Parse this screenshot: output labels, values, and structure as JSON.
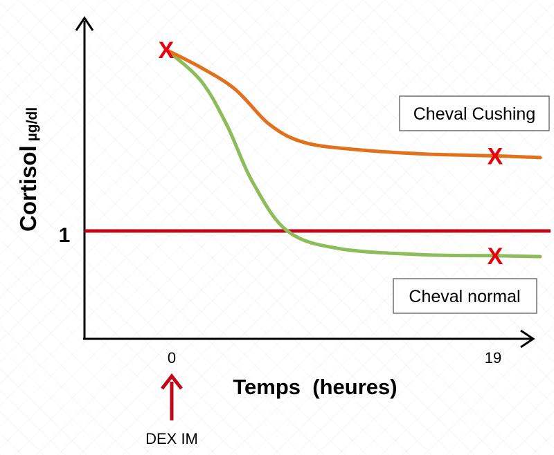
{
  "chart_data": {
    "type": "line",
    "xlabel": "Temps  (heures)",
    "ylabel": "Cortisol",
    "ylabel_unit": "µg/dl",
    "x_ticks": [
      "0",
      "19"
    ],
    "y_ticks": [
      "1"
    ],
    "x_range": [
      0,
      19
    ],
    "grid": false,
    "series": [
      {
        "name": "Cheval Cushing",
        "color": "#e2711d",
        "points": [
          [
            0,
            3.05
          ],
          [
            2,
            2.85
          ],
          [
            4,
            2.6
          ],
          [
            6,
            2.2
          ],
          [
            8,
            2.0
          ],
          [
            11,
            1.92
          ],
          [
            15,
            1.87
          ],
          [
            19,
            1.85
          ],
          [
            21.6,
            1.83
          ]
        ]
      },
      {
        "name": "Cheval normal",
        "color": "#8dbd5a",
        "points": [
          [
            0,
            3.05
          ],
          [
            2,
            2.7
          ],
          [
            3.5,
            2.2
          ],
          [
            5,
            1.55
          ],
          [
            7,
            1.0
          ],
          [
            10,
            0.8
          ],
          [
            15,
            0.73
          ],
          [
            19,
            0.72
          ],
          [
            21.6,
            0.71
          ]
        ]
      }
    ],
    "reference_line": {
      "value": 1,
      "color": "#c0081a"
    },
    "markers": [
      {
        "symbol": "X",
        "x": 0,
        "y": 3.05,
        "color": "#e8000f"
      },
      {
        "symbol": "X",
        "x": 19,
        "y": 1.85,
        "color": "#e8000f"
      },
      {
        "symbol": "X",
        "x": 19,
        "y": 0.72,
        "color": "#e8000f"
      }
    ],
    "annotation": {
      "text": "DEX IM",
      "x": 0,
      "color": "#c0081a"
    },
    "legend_labels": [
      "Cheval Cushing",
      "Cheval normal"
    ]
  }
}
